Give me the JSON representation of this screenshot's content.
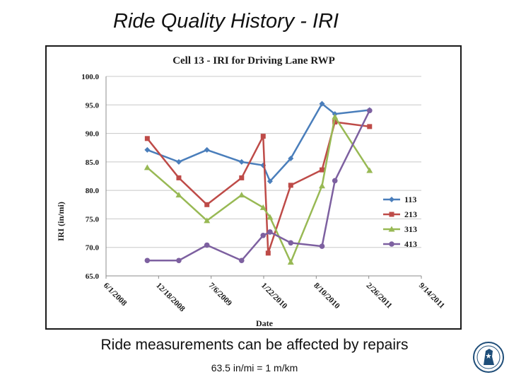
{
  "slide": {
    "title": "Ride Quality History - IRI",
    "subtitle": "Ride measurements can be affected by repairs",
    "footnote": "63.5 in/mi = 1 m/km"
  },
  "chart_data": {
    "type": "line",
    "title": "Cell 13 - IRI for Driving Lane RWP",
    "xlabel": "Date",
    "ylabel": "IRI (in/mi)",
    "ylim": [
      65.0,
      100.0
    ],
    "yticks": [
      "65.0",
      "70.0",
      "75.0",
      "80.0",
      "85.0",
      "90.0",
      "95.0",
      "100.0"
    ],
    "xlim": [
      "2008-06-01",
      "2011-09-14"
    ],
    "xticks": [
      {
        "label": "6/1/2008",
        "date": "2008-06-01"
      },
      {
        "label": "12/18/2008",
        "date": "2008-12-18"
      },
      {
        "label": "7/6/2009",
        "date": "2009-07-06"
      },
      {
        "label": "1/22/2010",
        "date": "2010-01-22"
      },
      {
        "label": "8/10/2010",
        "date": "2010-08-10"
      },
      {
        "label": "2/26/2011",
        "date": "2011-02-26"
      },
      {
        "label": "9/14/2011",
        "date": "2011-09-14"
      }
    ],
    "grid": "horizontal",
    "legend_position": "right",
    "series": [
      {
        "name": "113",
        "color": "#4a7ebb",
        "marker": "diamond",
        "points": [
          {
            "x": "2008-11-05",
            "y": 87.1
          },
          {
            "x": "2009-03-05",
            "y": 85.0
          },
          {
            "x": "2009-06-20",
            "y": 87.1
          },
          {
            "x": "2009-10-30",
            "y": 85.0
          },
          {
            "x": "2010-01-20",
            "y": 84.4
          },
          {
            "x": "2010-02-15",
            "y": 81.6
          },
          {
            "x": "2010-05-05",
            "y": 85.6
          },
          {
            "x": "2010-09-01",
            "y": 95.2
          },
          {
            "x": "2010-10-20",
            "y": 93.4
          },
          {
            "x": "2011-03-01",
            "y": 94.1
          }
        ]
      },
      {
        "name": "213",
        "color": "#be4b48",
        "marker": "square",
        "points": [
          {
            "x": "2008-11-05",
            "y": 89.1
          },
          {
            "x": "2009-03-05",
            "y": 82.2
          },
          {
            "x": "2009-06-20",
            "y": 77.5
          },
          {
            "x": "2009-10-30",
            "y": 82.2
          },
          {
            "x": "2010-01-20",
            "y": 89.5
          },
          {
            "x": "2010-02-08",
            "y": 69.0
          },
          {
            "x": "2010-05-05",
            "y": 80.9
          },
          {
            "x": "2010-09-01",
            "y": 83.6
          },
          {
            "x": "2010-10-20",
            "y": 92.0
          },
          {
            "x": "2011-03-01",
            "y": 91.2
          }
        ]
      },
      {
        "name": "313",
        "color": "#98b954",
        "marker": "triangle",
        "points": [
          {
            "x": "2008-11-05",
            "y": 84.0
          },
          {
            "x": "2009-03-05",
            "y": 79.2
          },
          {
            "x": "2009-06-20",
            "y": 74.7
          },
          {
            "x": "2009-10-30",
            "y": 79.2
          },
          {
            "x": "2010-01-20",
            "y": 77.0
          },
          {
            "x": "2010-02-15",
            "y": 75.3
          },
          {
            "x": "2010-05-05",
            "y": 67.4
          },
          {
            "x": "2010-09-01",
            "y": 80.8
          },
          {
            "x": "2010-10-20",
            "y": 92.9
          },
          {
            "x": "2011-03-01",
            "y": 83.5
          }
        ]
      },
      {
        "name": "413",
        "color": "#7d60a0",
        "marker": "circle",
        "points": [
          {
            "x": "2008-11-05",
            "y": 67.7
          },
          {
            "x": "2009-03-05",
            "y": 67.7
          },
          {
            "x": "2009-06-20",
            "y": 70.4
          },
          {
            "x": "2009-10-30",
            "y": 67.7
          },
          {
            "x": "2010-01-20",
            "y": 72.1
          },
          {
            "x": "2010-02-15",
            "y": 72.7
          },
          {
            "x": "2010-05-05",
            "y": 70.8
          },
          {
            "x": "2010-09-01",
            "y": 70.2
          },
          {
            "x": "2010-10-20",
            "y": 81.7
          },
          {
            "x": "2011-03-01",
            "y": 94.0
          }
        ]
      }
    ]
  }
}
